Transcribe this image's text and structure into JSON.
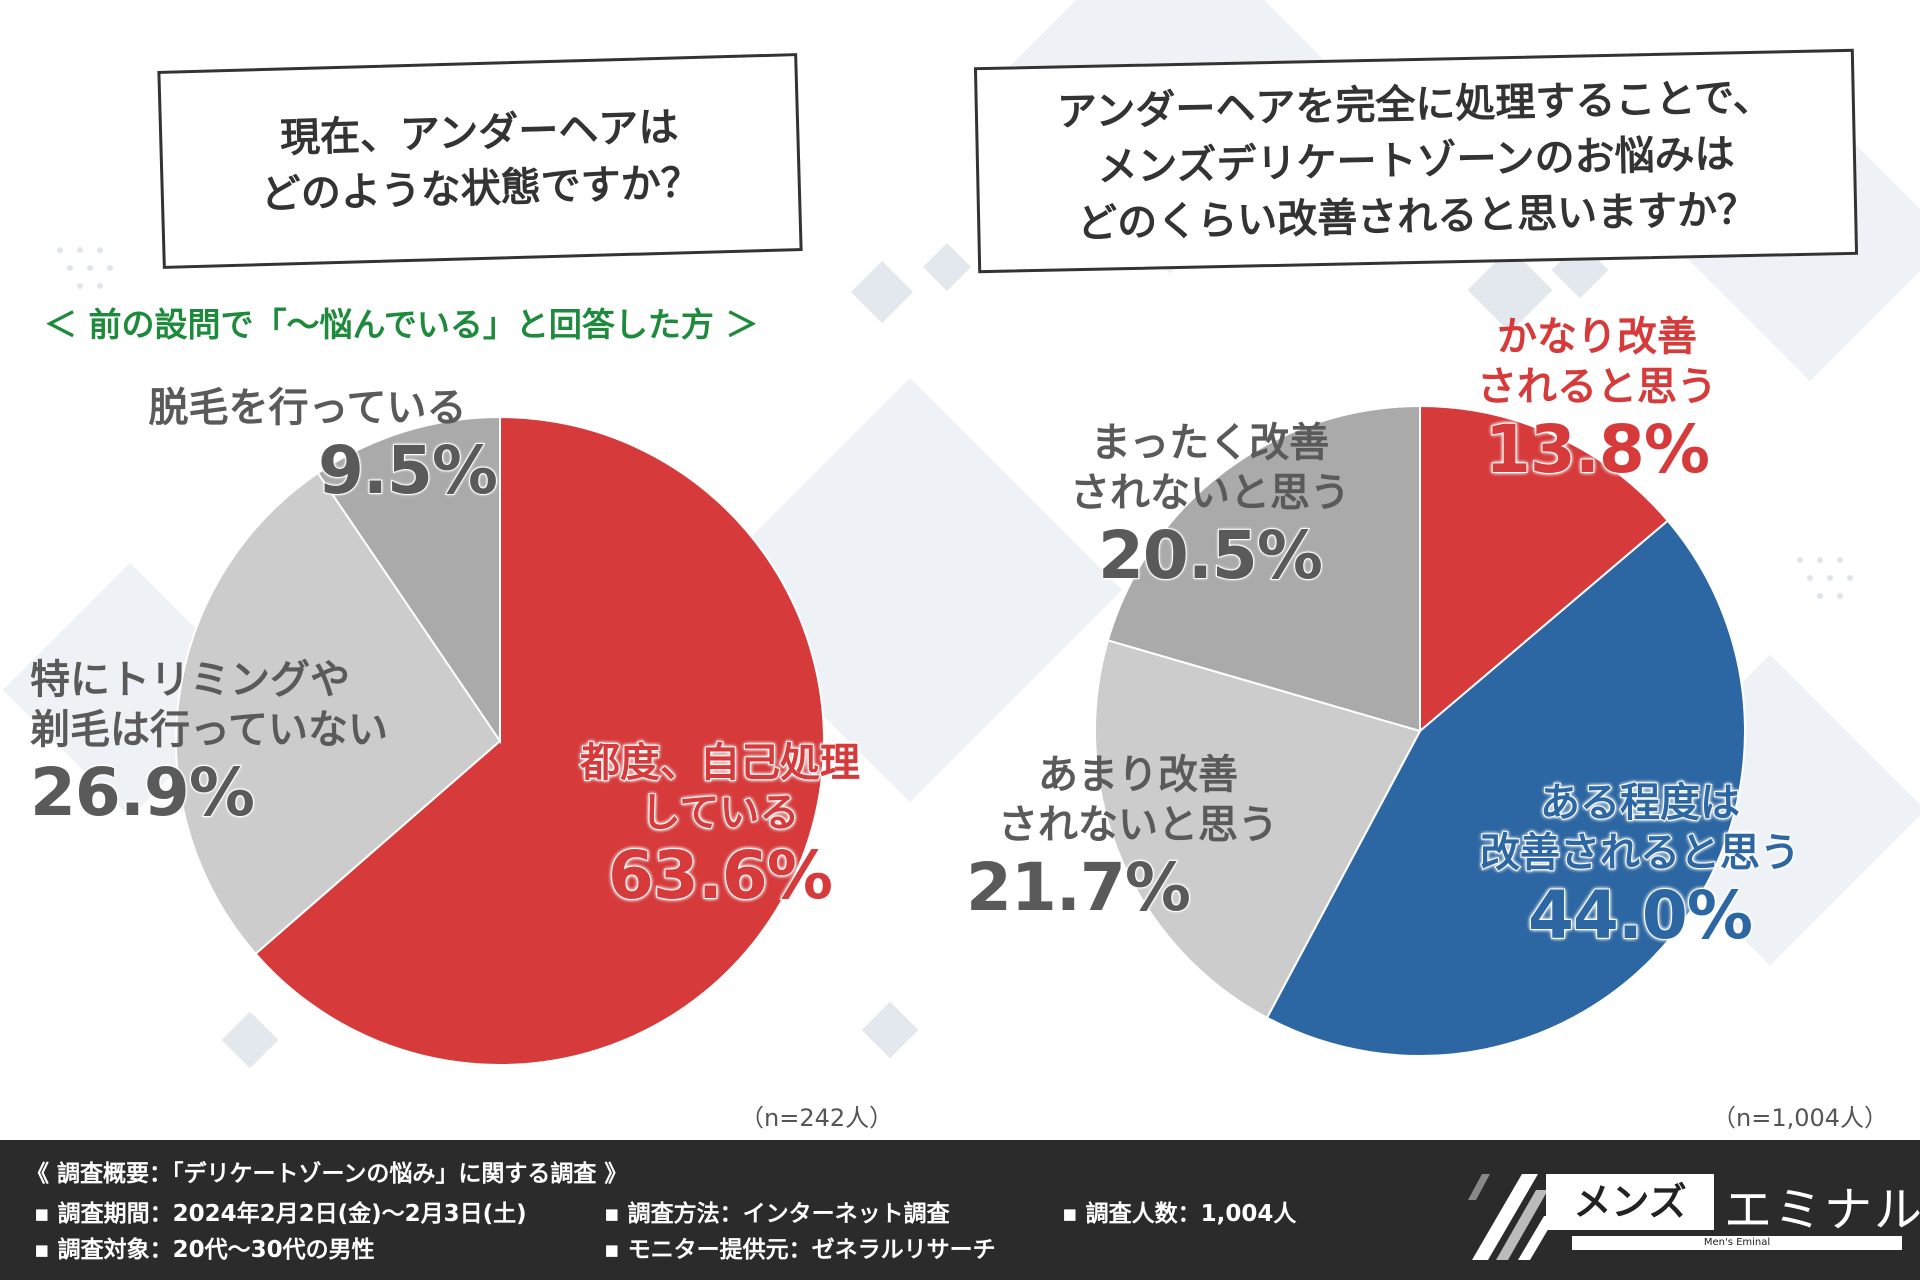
{
  "left_chart": {
    "question_lines": [
      "現在、アンダーヘアは",
      "どのような状態ですか？"
    ],
    "subnote": "＜ 前の設問で「～悩んでいる」と回答した方 ＞",
    "n_label": "（n=242人）"
  },
  "right_chart": {
    "question_lines": [
      "アンダーヘアを完全に処理することで、",
      "メンズデリケートゾーンのお悩みは",
      "どのくらい改善されると思いますか？"
    ],
    "n_label": "（n=1,004人）"
  },
  "colors": {
    "red": "#d63a3a",
    "blue": "#2d67a3",
    "gray_dark": "#aaaaaa",
    "gray_light": "#cccccc"
  },
  "chart_data": [
    {
      "type": "pie",
      "title": "現在、アンダーヘアはどのような状態ですか？",
      "slices": [
        {
          "label_lines": [
            "都度、自己処理",
            "している"
          ],
          "value": 63.6,
          "display": "63.6%",
          "color": "#d63a3a"
        },
        {
          "label_lines": [
            "特にトリミングや",
            "剃毛は行っていない"
          ],
          "value": 26.9,
          "display": "26.9%",
          "color": "#cccccc"
        },
        {
          "label_lines": [
            "脱毛を行っている"
          ],
          "value": 9.5,
          "display": "9.5%",
          "color": "#aaaaaa"
        }
      ]
    },
    {
      "type": "pie",
      "title": "アンダーヘアを完全に処理することで、メンズデリケートゾーンのお悩みはどのくらい改善されると思いますか？",
      "slices": [
        {
          "label_lines": [
            "かなり改善",
            "されると思う"
          ],
          "value": 13.8,
          "display": "13.8%",
          "color": "#d63a3a"
        },
        {
          "label_lines": [
            "ある程度は",
            "改善されると思う"
          ],
          "value": 44.0,
          "display": "44.0%",
          "color": "#2d67a3"
        },
        {
          "label_lines": [
            "あまり改善",
            "されないと思う"
          ],
          "value": 21.7,
          "display": "21.7%",
          "color": "#cccccc"
        },
        {
          "label_lines": [
            "まったく改善",
            "されないと思う"
          ],
          "value": 20.5,
          "display": "20.5%",
          "color": "#aaaaaa"
        }
      ]
    }
  ],
  "footer": {
    "heading": "《 調査概要：「デリケートゾーンの悩み」に関する調査 》",
    "items": [
      "調査期間：2024年2月2日(金)～2月3日(土)",
      "調査方法：インターネット調査",
      "調査人数：1,004人",
      "調査対象：20代～30代の男性",
      "モニター提供元：ゼネラルリサーチ"
    ]
  },
  "logo": {
    "box_text": "メンズ",
    "main_text": "エミナル",
    "sub_text": "Men's Eminal"
  }
}
